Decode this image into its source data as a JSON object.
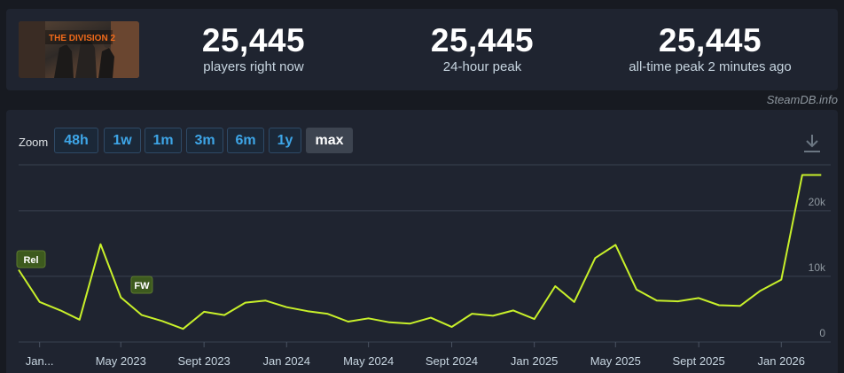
{
  "stats": {
    "current": {
      "value": "25,445",
      "label": "players right now"
    },
    "peak24h": {
      "value": "25,445",
      "label": "24-hour peak"
    },
    "alltime": {
      "value": "25,445",
      "label": "all-time peak 2 minutes ago"
    }
  },
  "game": {
    "logo_text": "THE DIVISION 2"
  },
  "credit": "SteamDB.info",
  "zoom": {
    "label": "Zoom",
    "buttons": [
      "48h",
      "1w",
      "1m",
      "3m",
      "6m",
      "1y",
      "max"
    ],
    "active": "max"
  },
  "colors": {
    "line": "#c8f02a",
    "accent": "#3ea6e8",
    "panel": "#1f2430",
    "background": "#171a21"
  },
  "chart_data": {
    "type": "line",
    "title": "",
    "xlabel": "",
    "ylabel": "",
    "ylim": [
      0,
      27000
    ],
    "yticks": [
      {
        "value": 0,
        "label": "0"
      },
      {
        "value": 10000,
        "label": "10k"
      },
      {
        "value": 20000,
        "label": "20k"
      }
    ],
    "xticks": [
      {
        "date": "2023-01-01",
        "label": "Jan..."
      },
      {
        "date": "2023-05-01",
        "label": "May 2023"
      },
      {
        "date": "2023-09-01",
        "label": "Sept 2023"
      },
      {
        "date": "2024-01-01",
        "label": "Jan 2024"
      },
      {
        "date": "2024-05-01",
        "label": "May 2024"
      },
      {
        "date": "2024-09-01",
        "label": "Sept 2024"
      },
      {
        "date": "2025-01-01",
        "label": "Jan 2025"
      },
      {
        "date": "2025-05-01",
        "label": "May 2025"
      },
      {
        "date": "2025-09-01",
        "label": "Sept 2025"
      },
      {
        "date": "2026-01-01",
        "label": "Jan 2026"
      }
    ],
    "series": [
      {
        "x": [
          "2022-12-01",
          "2023-01-01",
          "2023-02-01",
          "2023-03-01",
          "2023-04-01",
          "2023-05-01",
          "2023-06-01",
          "2023-07-01",
          "2023-08-01",
          "2023-09-01",
          "2023-10-01",
          "2023-11-01",
          "2023-12-01",
          "2024-01-01",
          "2024-02-01",
          "2024-03-01",
          "2024-04-01",
          "2024-05-01",
          "2024-06-01",
          "2024-07-01",
          "2024-08-01",
          "2024-09-01",
          "2024-10-01",
          "2024-11-01",
          "2024-12-01",
          "2025-01-01",
          "2025-02-01",
          "2025-03-01",
          "2025-04-01",
          "2025-05-01",
          "2025-06-01",
          "2025-07-01",
          "2025-08-01",
          "2025-09-01",
          "2025-10-01",
          "2025-11-01",
          "2025-12-01",
          "2026-01-01",
          "2026-02-01",
          "2026-03-01"
        ],
        "values": [
          11000,
          6100,
          4800,
          3400,
          14900,
          6800,
          4100,
          3200,
          2000,
          4600,
          4100,
          6000,
          6300,
          5300,
          4700,
          4300,
          3100,
          3600,
          3000,
          2800,
          3700,
          2300,
          4300,
          4000,
          4800,
          3500,
          8500,
          6100,
          12800,
          14800,
          8000,
          6300,
          6200,
          6700,
          5600,
          5500,
          7800,
          9500,
          25445,
          25445
        ]
      }
    ],
    "annotations": [
      {
        "date": "2022-12-01",
        "label": "Rel"
      },
      {
        "date": "2023-06-01",
        "label": "FW"
      }
    ],
    "grid": true,
    "legend": "none"
  }
}
